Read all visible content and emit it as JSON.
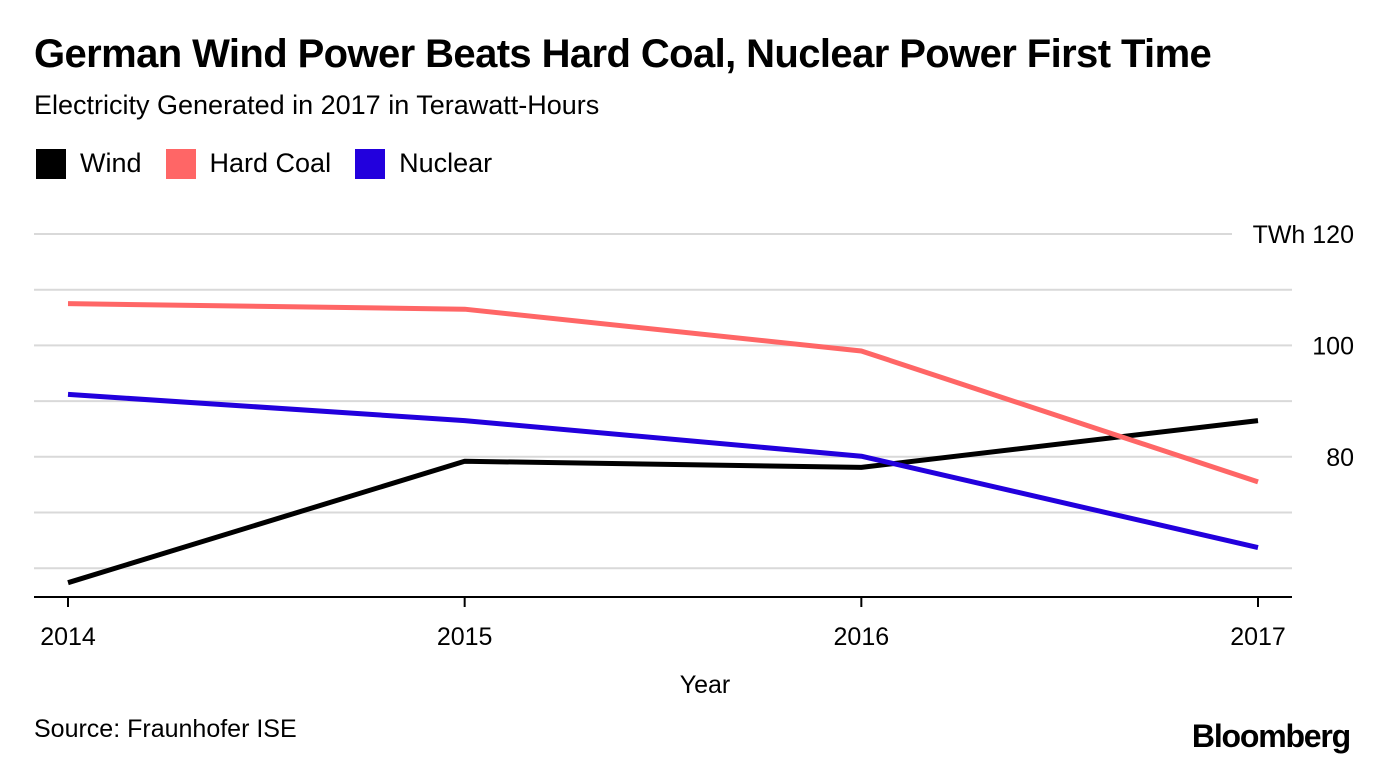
{
  "chart_data": {
    "type": "line",
    "title": "German Wind Power Beats Hard Coal, Nuclear Power First Time",
    "subtitle": "Electricity Generated in 2017 in Terawatt-Hours",
    "xlabel": "Year",
    "ylabel": "",
    "y_unit": "TWh",
    "x": [
      "2014",
      "2015",
      "2016",
      "2017"
    ],
    "ylim": [
      55,
      120
    ],
    "y_ticks": [
      120,
      100,
      80
    ],
    "y_tick_labels": [
      "TWh 120",
      "100",
      "80"
    ],
    "grid": true,
    "legend_position": "top-left",
    "series": [
      {
        "name": "Wind",
        "color": "#000000",
        "values": [
          57.4,
          79.2,
          78.1,
          86.5
        ]
      },
      {
        "name": "Hard Coal",
        "color": "#ff6666",
        "values": [
          107.5,
          106.5,
          99.0,
          75.5
        ]
      },
      {
        "name": "Nuclear",
        "color": "#2200dd",
        "values": [
          91.2,
          86.5,
          80.1,
          63.7
        ]
      }
    ]
  },
  "source": "Source: Fraunhofer ISE",
  "logo": "Bloomberg"
}
